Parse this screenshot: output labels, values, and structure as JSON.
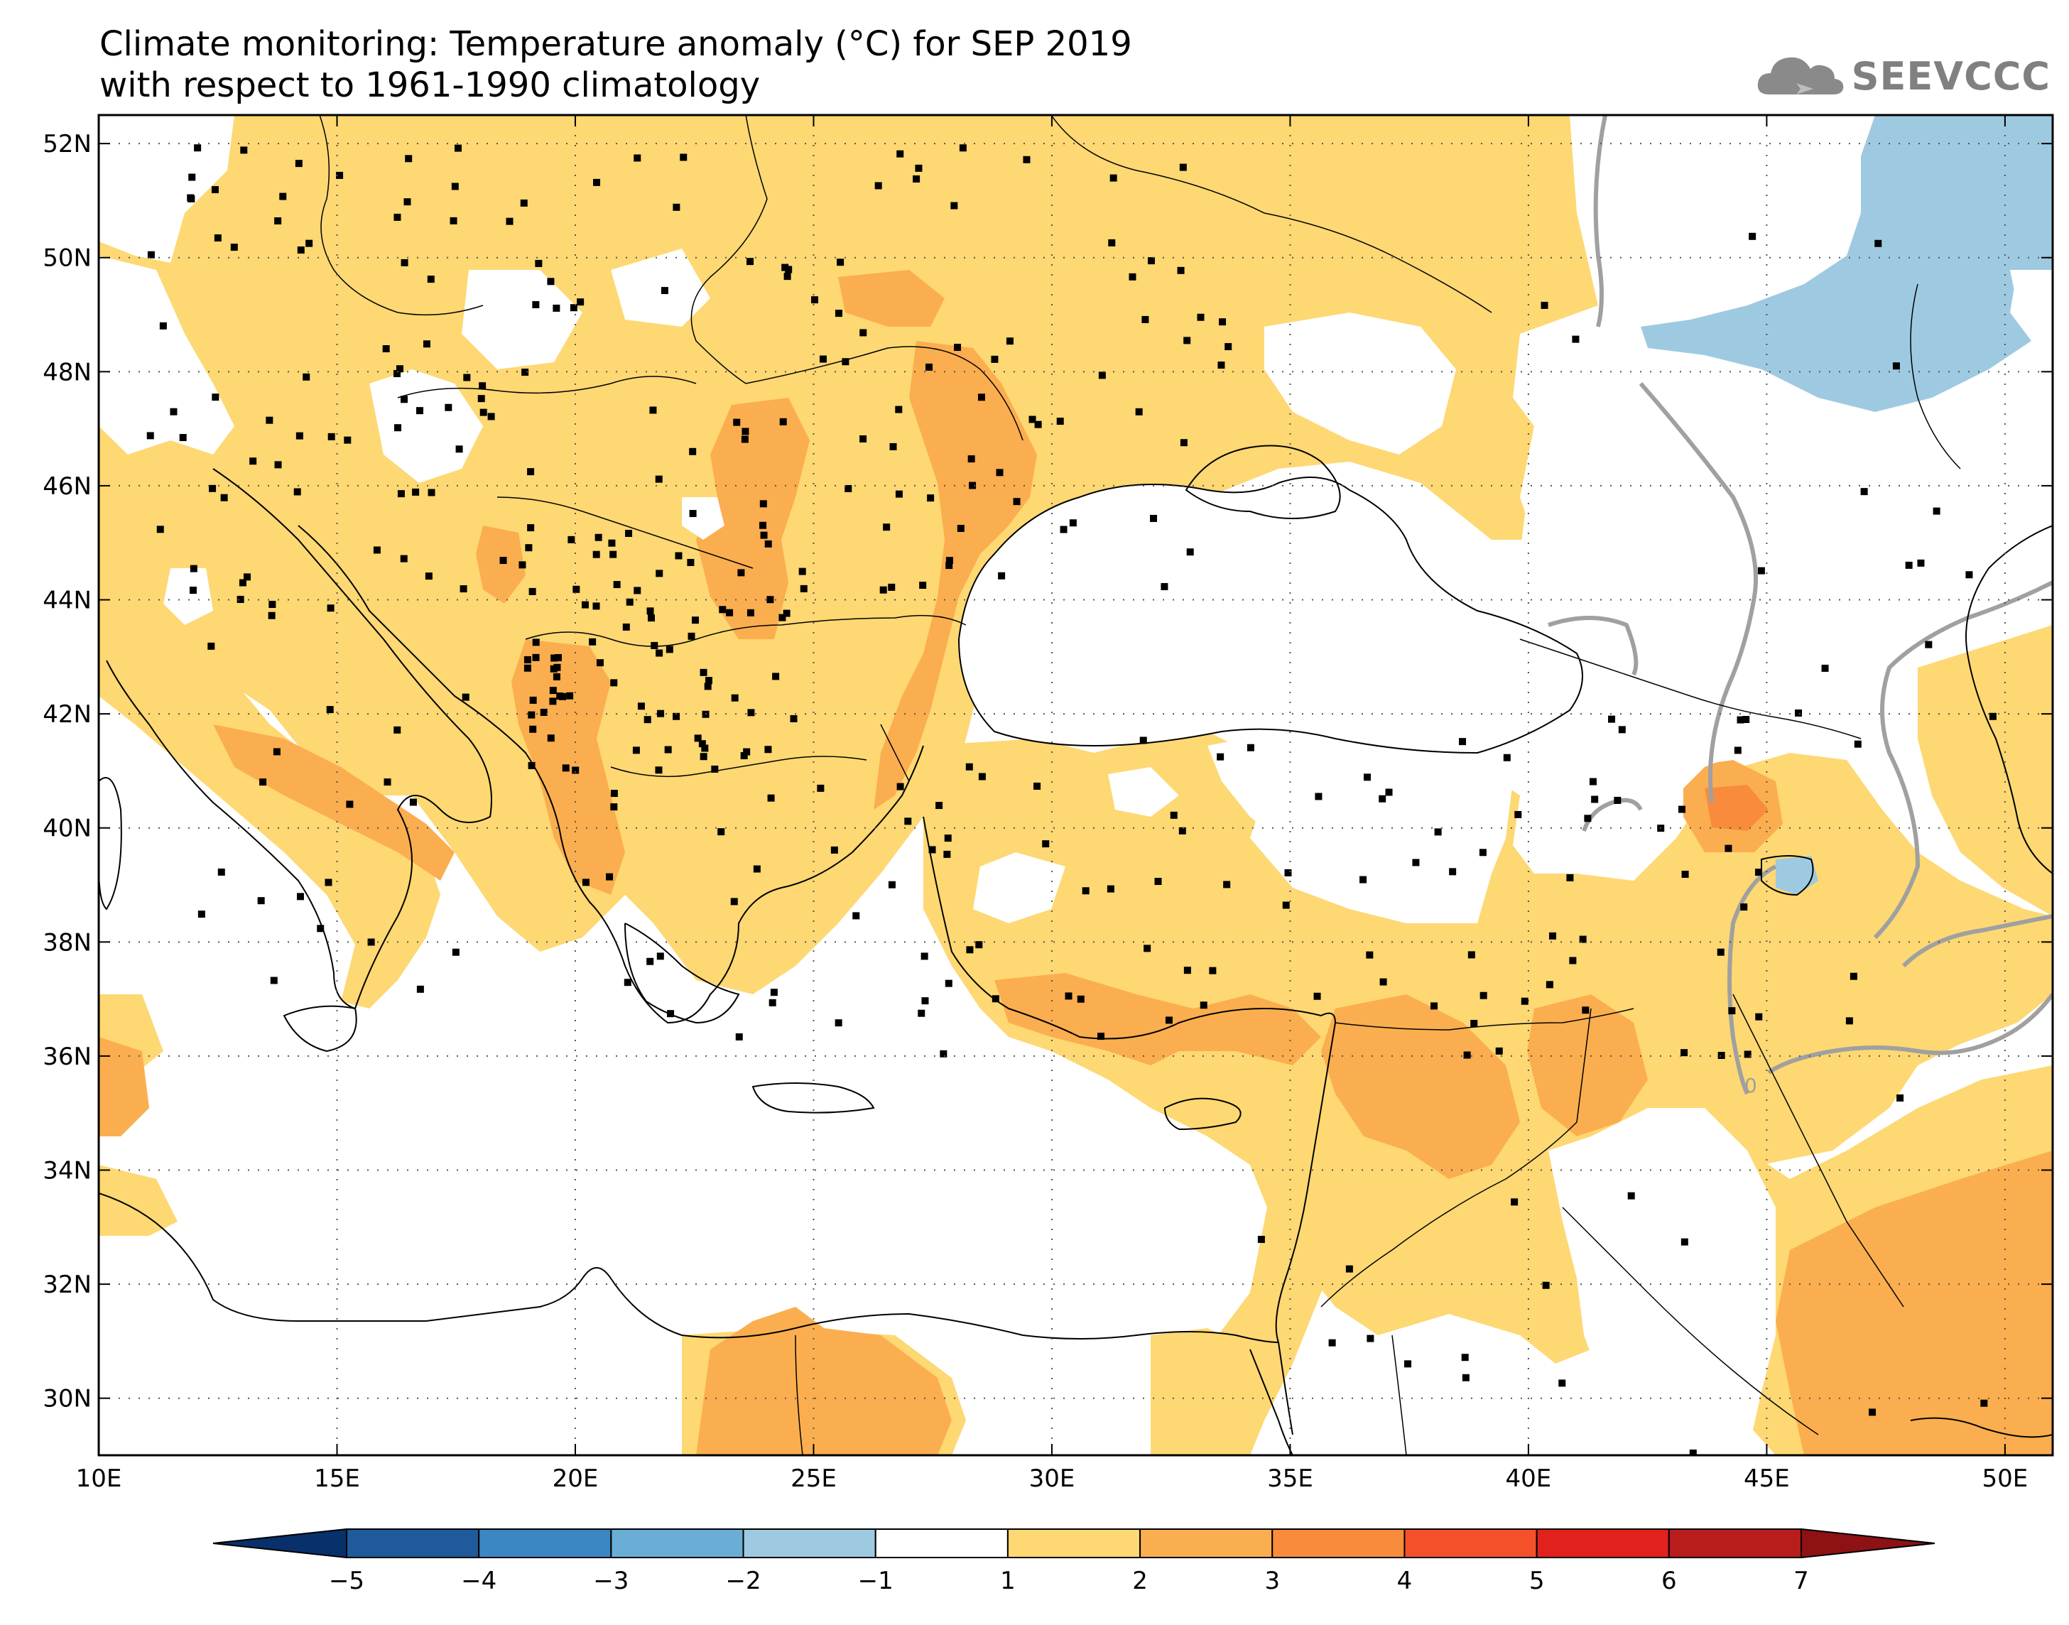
{
  "title": {
    "line1": "Climate monitoring: Temperature anomaly (°C) for SEP 2019",
    "line2": "with respect to 1961-1990 climatology"
  },
  "logo": {
    "text": "SEEVCCC",
    "icon": "cloud-icon",
    "color": "#808080"
  },
  "map": {
    "lon_range": [
      10,
      51
    ],
    "lat_range": [
      29,
      52.5
    ],
    "x_ticks": [
      "10E",
      "15E",
      "20E",
      "25E",
      "30E",
      "35E",
      "40E",
      "45E",
      "50E"
    ],
    "y_ticks": [
      "30N",
      "32N",
      "34N",
      "36N",
      "38N",
      "40N",
      "42N",
      "44N",
      "46N",
      "48N",
      "50N",
      "52N"
    ],
    "contour_label": "0",
    "grid": true
  },
  "colorbar": {
    "labels": [
      "-5",
      "-4",
      "-3",
      "-2",
      "-1",
      "1",
      "2",
      "3",
      "4",
      "5",
      "6",
      "7"
    ],
    "colors": [
      "#1f5a9a",
      "#3c86c4",
      "#6aaed6",
      "#9ecae1",
      "#ffffff",
      "#fdd873",
      "#fbae4f",
      "#f98c3c",
      "#f4512b",
      "#e2211d",
      "#b81c1b"
    ],
    "low_arrow_color": "#08306b",
    "high_arrow_color": "#8e1114"
  },
  "stations_color": "#000000"
}
